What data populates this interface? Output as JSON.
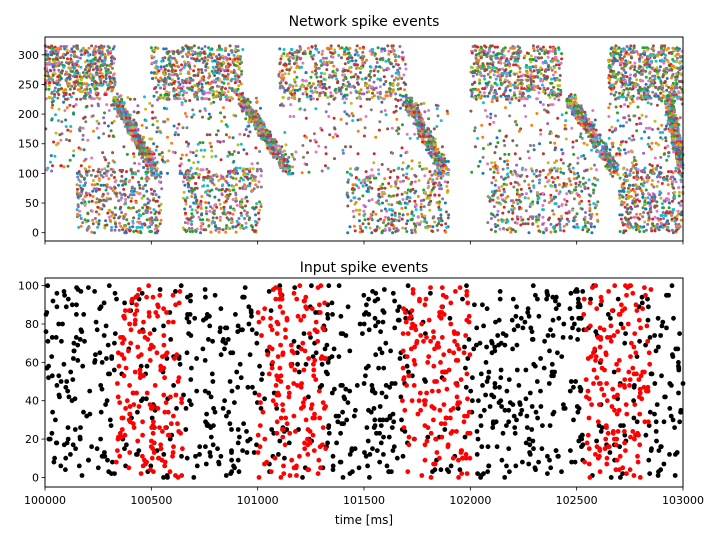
{
  "figure": {
    "shared_xlabel": "time [ms]"
  },
  "chart_data": [
    {
      "type": "scatter",
      "title": "Network spike events",
      "xlabel": "",
      "ylabel": "",
      "xlim": [
        100000,
        103000
      ],
      "ylim": [
        -14,
        330
      ],
      "yticks": [
        0,
        50,
        100,
        150,
        200,
        250,
        300
      ],
      "xticks": [
        100000,
        100500,
        101000,
        101500,
        102000,
        102500,
        103000
      ],
      "xtick_labels_visible": false,
      "grid": false,
      "legend": "none",
      "n_neurons": 316,
      "marker": "dot",
      "colors": [
        "#1f77b4",
        "#ff7f0e",
        "#2ca02c",
        "#d62728",
        "#9467bd",
        "#8c564b",
        "#e377c2",
        "#7f7f7f",
        "#bcbd22",
        "#17becf"
      ],
      "description_of_pattern": "Recurrent activity waves: high-index neurons (250-316) fire first, followed by a diagonal sweep down through mid-range neurons (~220 to ~100), then low-index neurons (0-100), repeating roughly every 700 ms.",
      "waves": [
        {
          "high_start": 100000,
          "high_end": 100330,
          "diag_start": 100330,
          "diag_end": 100520,
          "low_start": 100150,
          "low_end": 100550
        },
        {
          "high_start": 100500,
          "high_end": 100930,
          "diag_start": 100920,
          "diag_end": 101150,
          "low_start": 100650,
          "low_end": 101020
        },
        {
          "high_start": 101100,
          "high_end": 101700,
          "diag_start": 101700,
          "diag_end": 101880,
          "low_start": 101420,
          "low_end": 101900
        },
        {
          "high_start": 102000,
          "high_end": 102430,
          "diag_start": 102470,
          "diag_end": 102680,
          "low_start": 102080,
          "low_end": 102600
        },
        {
          "high_start": 102650,
          "high_end": 103000,
          "diag_start": 102930,
          "diag_end": 103000,
          "low_start": 102700,
          "low_end": 103000
        }
      ]
    },
    {
      "type": "scatter",
      "title": "Input spike events",
      "xlabel": "time [ms]",
      "ylabel": "",
      "xlim": [
        100000,
        103000
      ],
      "ylim": [
        -5,
        104
      ],
      "yticks": [
        0,
        20,
        40,
        60,
        80,
        100
      ],
      "xticks": [
        100000,
        100500,
        101000,
        101500,
        102000,
        102500,
        103000
      ],
      "xtick_labels": [
        "100000",
        "100500",
        "101000",
        "101500",
        "102000",
        "102500",
        "103000"
      ],
      "grid": false,
      "legend": "none",
      "n_inputs": 100,
      "series": [
        {
          "color": "#000000",
          "description": "background Poisson input spikes, uniform over time and input index"
        },
        {
          "color": "#ff0000",
          "description": "patterned input spikes during stimulus windows"
        }
      ],
      "stimulus_windows_ms": [
        [
          100330,
          100650
        ],
        [
          101000,
          101320
        ],
        [
          101680,
          102000
        ],
        [
          102530,
          102850
        ]
      ]
    }
  ]
}
